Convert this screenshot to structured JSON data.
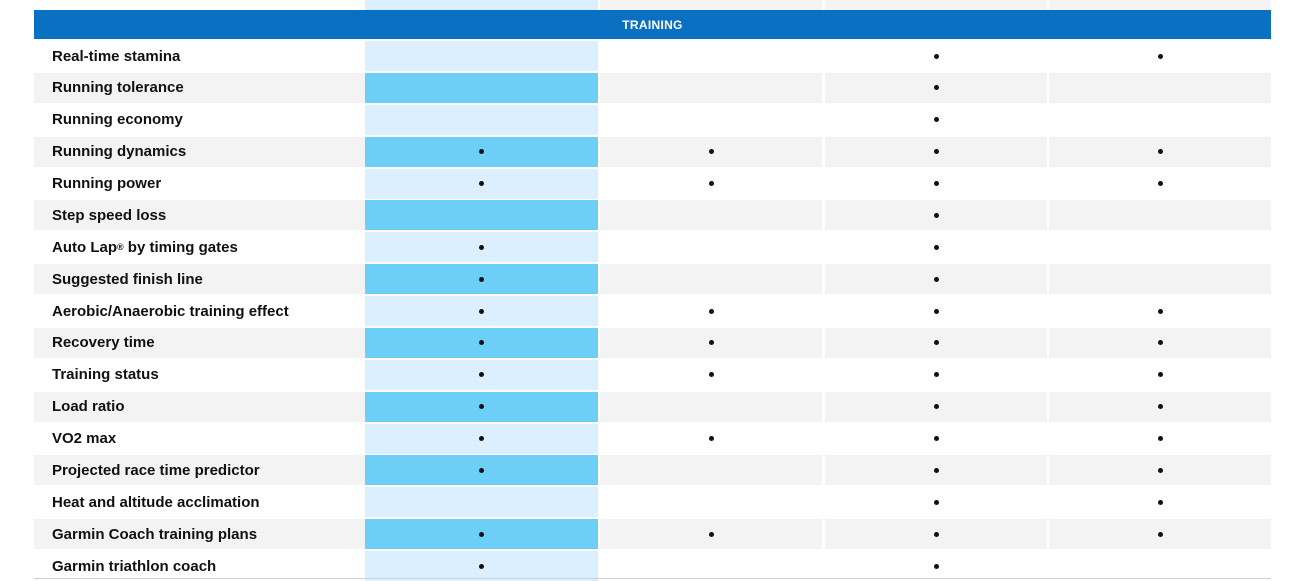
{
  "section": {
    "title": "TRAINING"
  },
  "rows": [
    {
      "label": "Real-time stamina",
      "marks": [
        false,
        false,
        true,
        true
      ]
    },
    {
      "label": "Running tolerance",
      "marks": [
        false,
        false,
        true,
        false
      ]
    },
    {
      "label": "Running economy",
      "marks": [
        false,
        false,
        true,
        false
      ]
    },
    {
      "label": "Running dynamics",
      "marks": [
        true,
        true,
        true,
        true
      ]
    },
    {
      "label": "Running power",
      "marks": [
        true,
        true,
        true,
        true
      ]
    },
    {
      "label": "Step speed loss",
      "marks": [
        false,
        false,
        true,
        false
      ]
    },
    {
      "label": "Auto Lap",
      "label_sup": "®",
      "label_suffix": " by timing gates",
      "marks": [
        true,
        false,
        true,
        false
      ]
    },
    {
      "label": "Suggested finish line",
      "marks": [
        true,
        false,
        true,
        false
      ]
    },
    {
      "label": "Aerobic/Anaerobic training effect",
      "marks": [
        true,
        true,
        true,
        true
      ]
    },
    {
      "label": "Recovery time",
      "marks": [
        true,
        true,
        true,
        true
      ]
    },
    {
      "label": "Training status",
      "marks": [
        true,
        true,
        true,
        true
      ]
    },
    {
      "label": "Load ratio",
      "marks": [
        true,
        false,
        true,
        true
      ]
    },
    {
      "label": "VO2 max",
      "marks": [
        true,
        true,
        true,
        true
      ]
    },
    {
      "label": "Projected race time predictor",
      "marks": [
        true,
        false,
        true,
        true
      ]
    },
    {
      "label": "Heat and altitude acclimation",
      "marks": [
        false,
        false,
        true,
        true
      ]
    },
    {
      "label": "Garmin Coach training plans",
      "marks": [
        true,
        true,
        true,
        true
      ]
    },
    {
      "label": "Garmin triathlon coach",
      "marks": [
        true,
        false,
        true,
        false
      ]
    }
  ],
  "colors": {
    "header_bg": "#0a70c2",
    "highlight_col_light": "#dcefff",
    "highlight_col_dark": "#6dcff6",
    "stripe_gray": "#f3f3f3",
    "mark": "#111111"
  },
  "icons": {
    "mark": "bullet-dot-icon"
  }
}
